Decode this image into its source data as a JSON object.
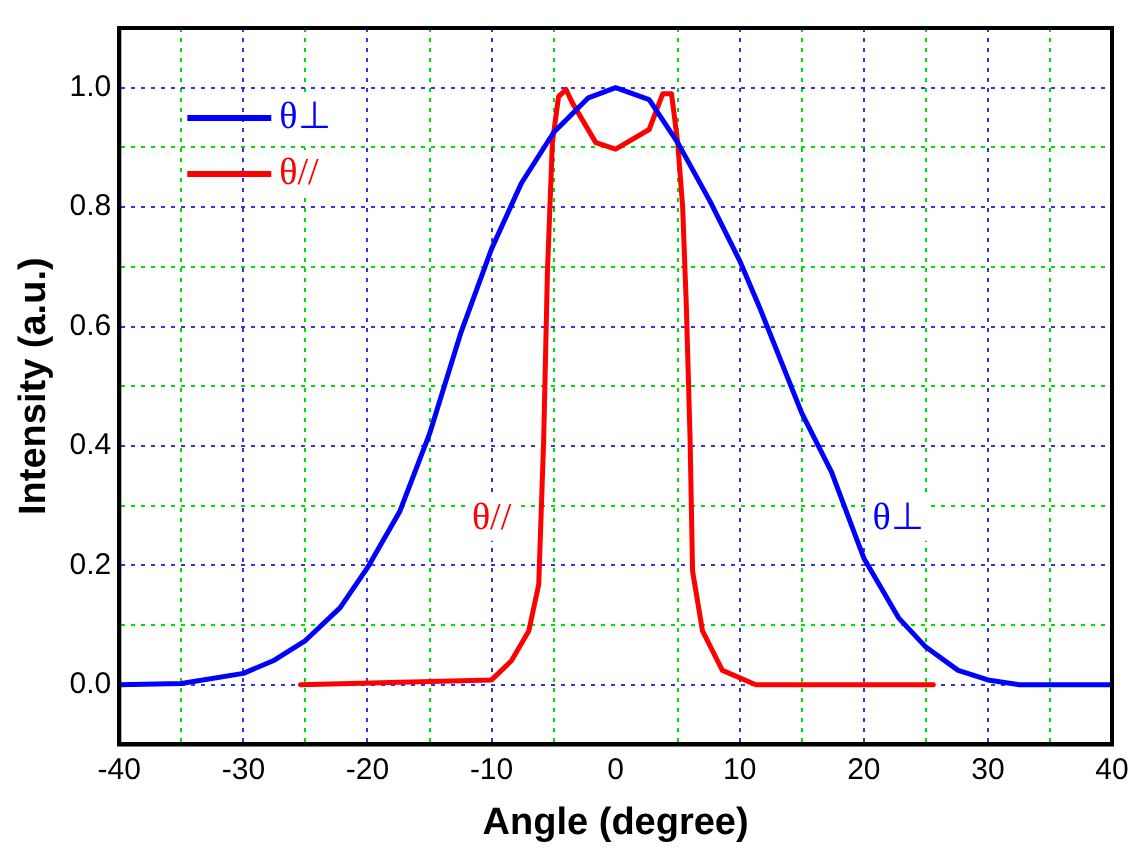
{
  "chart_data": {
    "type": "line",
    "xlabel": "Angle (degree)",
    "ylabel": "Intensity (a.u.)",
    "xlim": [
      -40,
      40
    ],
    "xticks": [
      -40,
      {
        "value": -35,
        "label": null
      },
      -30,
      {
        "value": -25,
        "label": null
      },
      -20,
      {
        "value": -15,
        "label": null
      },
      -10,
      {
        "value": -5,
        "label": null
      },
      0,
      {
        "value": 5,
        "label": null
      },
      10,
      {
        "value": 15,
        "label": null
      },
      20,
      {
        "value": 25,
        "label": null
      },
      30,
      {
        "value": 35,
        "label": null
      },
      40
    ],
    "ylim": [
      -0.1,
      1.1
    ],
    "yticks": [
      {
        "value": 0,
        "label": "0.0"
      },
      {
        "value": 0.1,
        "label": null
      },
      {
        "value": 0.2,
        "label": "0.2"
      },
      {
        "value": 0.3,
        "label": null
      },
      {
        "value": 0.4,
        "label": "0.4"
      },
      {
        "value": 0.5,
        "label": null
      },
      {
        "value": 0.6,
        "label": "0.6"
      },
      {
        "value": 0.7,
        "label": null
      },
      {
        "value": 0.8,
        "label": "0.8"
      },
      {
        "value": 0.9,
        "label": null
      },
      {
        "value": 1.0,
        "label": "1.0"
      }
    ],
    "grid": true,
    "legend": "top left",
    "marker": "none",
    "line_style": "solid",
    "series": [
      {
        "name": "θ⊥",
        "color": "#0000ff",
        "x": [
          -40,
          -35,
          -30,
          -27.6,
          -25,
          -22.2,
          -20,
          -17.4,
          -15,
          -12.5,
          -10,
          -7.6,
          -5,
          -2.2,
          0,
          2.7,
          5,
          7.6,
          10,
          11.6,
          15,
          17.4,
          20,
          22.8,
          25,
          27.6,
          30,
          32.5,
          40
        ],
        "values": [
          0,
          0.002,
          0.019,
          0.04,
          0.074,
          0.129,
          0.196,
          0.29,
          0.42,
          0.588,
          0.73,
          0.84,
          0.925,
          0.983,
          1.0,
          0.98,
          0.908,
          0.81,
          0.71,
          0.632,
          0.455,
          0.356,
          0.212,
          0.112,
          0.063,
          0.024,
          0.008,
          0,
          0
        ]
      },
      {
        "name": "θ//",
        "color": "#ff0000",
        "x": [
          -25.4,
          -10,
          -8.4,
          -7,
          -6.2,
          -5.8,
          -5.5,
          -5.1,
          -4.6,
          -4,
          -3.5,
          -1.6,
          0,
          2.7,
          3.8,
          4.5,
          5,
          5.4,
          5.7,
          6,
          6.2,
          7,
          8.6,
          11.3,
          25.6
        ],
        "values": [
          0,
          0.008,
          0.04,
          0.09,
          0.168,
          0.41,
          0.69,
          0.908,
          0.985,
          0.997,
          0.975,
          0.908,
          0.897,
          0.93,
          0.99,
          0.99,
          0.908,
          0.8,
          0.632,
          0.41,
          0.19,
          0.09,
          0.024,
          0,
          0
        ]
      }
    ],
    "annotations": [
      "θ⊥",
      "θ//"
    ]
  }
}
